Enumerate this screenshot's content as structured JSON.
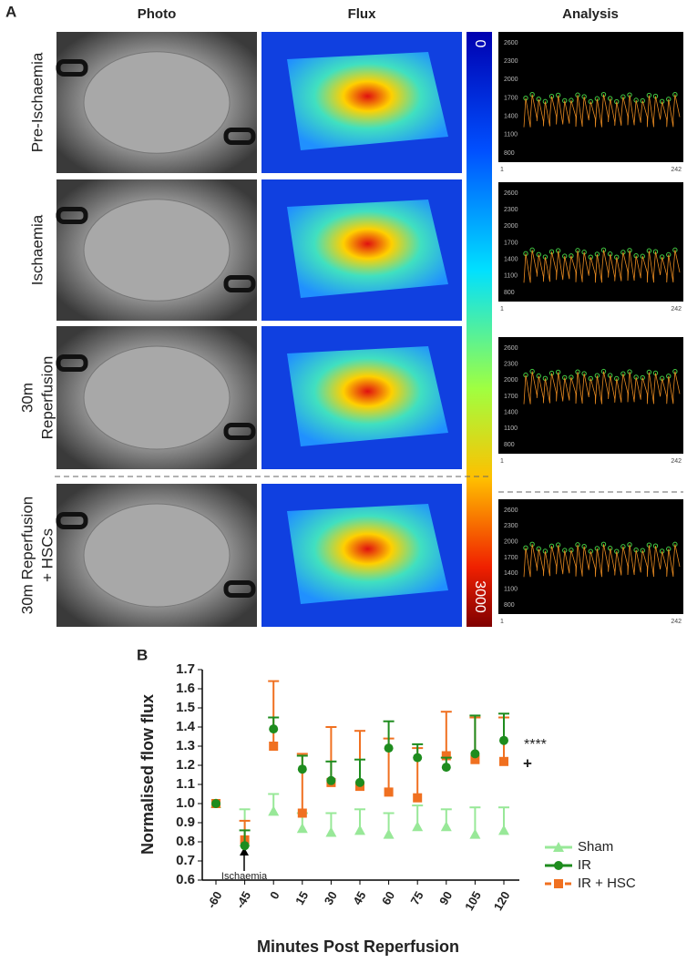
{
  "panel_a": {
    "label": "A",
    "columns": [
      "Photo",
      "Flux",
      "Analysis"
    ],
    "rows": [
      [
        "Pre-Ischaemia"
      ],
      [
        "Ischaemia"
      ],
      [
        "30m",
        "Reperfusion"
      ],
      [
        "30m Reperfusion",
        "+ HSCs"
      ]
    ],
    "colorbar": [
      "0",
      "3000"
    ],
    "analysis_yticks": [
      2600,
      2300,
      2000,
      1700,
      1400,
      1100,
      800
    ],
    "analysis_xticks": [
      1,
      242
    ]
  },
  "chart_data": {
    "type": "line",
    "panel_label": "B",
    "y_label": "Normalised flow flux",
    "x_label": "Minutes Post Reperfusion",
    "annotations": [
      "Ischaemia",
      "****",
      "+"
    ],
    "categories": [
      "-60",
      "-45",
      "0",
      "15",
      "30",
      "45",
      "60",
      "75",
      "90",
      "105",
      "120"
    ],
    "ylim": [
      0.6,
      1.7
    ],
    "yticks": [
      0.6,
      0.7,
      0.8,
      0.9,
      {
        "value": 1,
        "label": "1.0"
      },
      1.1,
      1.2,
      1.3,
      1.4,
      1.5,
      1.6,
      1.7
    ],
    "legend": "right",
    "series": [
      {
        "name": "Sham",
        "color": "#98e898",
        "marker": "triangle",
        "dashed": false,
        "values": [
          1.0,
          0.8,
          0.96,
          0.87,
          0.85,
          0.86,
          0.84,
          0.88,
          0.88,
          0.84,
          0.86
        ],
        "errors": [
          null,
          0.17,
          0.09,
          0.08,
          0.1,
          0.11,
          0.11,
          0.11,
          0.09,
          0.14,
          0.12
        ]
      },
      {
        "name": "IR + HSC",
        "color": "#f07020",
        "marker": "square",
        "dashed": true,
        "values": [
          1.0,
          0.81,
          1.3,
          0.95,
          1.11,
          1.09,
          1.06,
          1.03,
          1.25,
          1.23,
          1.22
        ],
        "errors": [
          null,
          0.1,
          0.34,
          0.31,
          0.29,
          0.29,
          0.28,
          0.26,
          0.23,
          0.22,
          0.23
        ]
      },
      {
        "name": "IR",
        "color": "#1e8c1e",
        "marker": "circle",
        "dashed": false,
        "values": [
          1.0,
          0.78,
          1.39,
          1.18,
          1.12,
          1.11,
          1.29,
          1.24,
          1.19,
          1.26,
          1.33
        ],
        "errors": [
          null,
          0.08,
          0.06,
          0.07,
          0.1,
          0.12,
          0.14,
          0.07,
          0.05,
          0.2,
          0.14
        ]
      }
    ]
  }
}
